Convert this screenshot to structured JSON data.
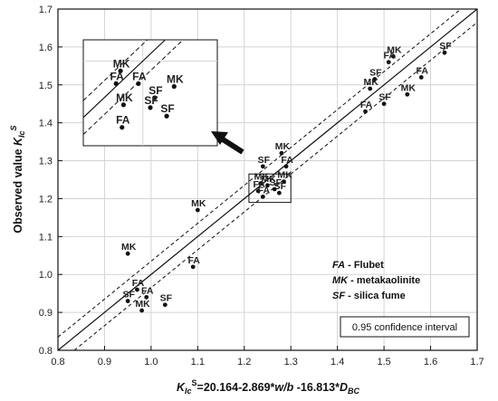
{
  "chart_data": {
    "type": "scatter",
    "xlabel": "K_Ic^S=20.164-2.869*w/b -16.813*D_BC",
    "ylabel": "Observed value K_Ic^S",
    "xlabel_parts": {
      "k": "K",
      "sub1": "Ic",
      "sup": "S",
      "rest_a": "=20.164-2.869*",
      "wb": "w/b",
      "rest_b": " -16.813*",
      "d": "D",
      "sub2": "BC"
    },
    "ylabel_parts": {
      "text": "Observed value ",
      "k": "K",
      "sub": "Ic",
      "sup": "S"
    },
    "xlim": [
      0.8,
      1.7
    ],
    "ylim": [
      0.8,
      1.7
    ],
    "xticks": [
      "0.8",
      "0.9",
      "1.0",
      "1.1",
      "1.2",
      "1.3",
      "1.4",
      "1.5",
      "1.6",
      "1.7"
    ],
    "yticks": [
      "0.8",
      "0.9",
      "1.0",
      "1.1",
      "1.2",
      "1.3",
      "1.4",
      "1.5",
      "1.6",
      "1.7"
    ],
    "grid": true,
    "fit_line": {
      "slope": 1,
      "intercept": 0
    },
    "confidence_band": {
      "label": "0.95 confidence interval",
      "offset": 0.035
    },
    "legend": [
      {
        "abbr": "FA",
        "desc": " - Flubet"
      },
      {
        "abbr": "MK",
        "desc": " - metakaolinite"
      },
      {
        "abbr": "SF",
        "desc": " - silica fume"
      }
    ],
    "points": [
      {
        "label": "FA",
        "x": 0.97,
        "y": 0.96
      },
      {
        "label": "SF",
        "x": 0.95,
        "y": 0.93
      },
      {
        "label": "FA",
        "x": 0.99,
        "y": 0.94
      },
      {
        "label": "MK",
        "x": 0.98,
        "y": 0.905
      },
      {
        "label": "SF",
        "x": 1.03,
        "y": 0.92
      },
      {
        "label": "MK",
        "x": 0.95,
        "y": 1.055
      },
      {
        "label": "FA",
        "x": 1.09,
        "y": 1.02
      },
      {
        "label": "MK",
        "x": 1.1,
        "y": 1.17
      },
      {
        "label": "SF",
        "x": 1.24,
        "y": 1.285
      },
      {
        "label": "MK",
        "x": 1.28,
        "y": 1.32
      },
      {
        "label": "FA",
        "x": 1.29,
        "y": 1.285
      },
      {
        "label": "MK",
        "x": 1.235,
        "y": 1.24
      },
      {
        "label": "FA",
        "x": 1.23,
        "y": 1.22
      },
      {
        "label": "FA",
        "x": 1.24,
        "y": 1.205
      },
      {
        "label": "MK",
        "x": 1.25,
        "y": 1.235
      },
      {
        "label": "SF",
        "x": 1.265,
        "y": 1.225
      },
      {
        "label": "MK",
        "x": 1.285,
        "y": 1.245
      },
      {
        "label": "SF",
        "x": 1.275,
        "y": 1.215
      },
      {
        "label": "FA",
        "x": 1.46,
        "y": 1.43
      },
      {
        "label": "MK",
        "x": 1.47,
        "y": 1.49
      },
      {
        "label": "SF",
        "x": 1.48,
        "y": 1.515
      },
      {
        "label": "SF",
        "x": 1.5,
        "y": 1.45
      },
      {
        "label": "FA",
        "x": 1.51,
        "y": 1.56
      },
      {
        "label": "MK",
        "x": 1.52,
        "y": 1.575
      },
      {
        "label": "MK",
        "x": 1.55,
        "y": 1.475
      },
      {
        "label": "FA",
        "x": 1.58,
        "y": 1.52
      },
      {
        "label": "SF",
        "x": 1.63,
        "y": 1.585
      }
    ],
    "inset": {
      "xlim": [
        1.21,
        1.3
      ],
      "ylim": [
        1.19,
        1.265
      ],
      "points": [
        {
          "label": "MK",
          "x": 1.235,
          "y": 1.243
        },
        {
          "label": "FA",
          "x": 1.232,
          "y": 1.234
        },
        {
          "label": "FA",
          "x": 1.247,
          "y": 1.234
        },
        {
          "label": "MK",
          "x": 1.271,
          "y": 1.232
        },
        {
          "label": "SF",
          "x": 1.258,
          "y": 1.224
        },
        {
          "label": "MK",
          "x": 1.237,
          "y": 1.219
        },
        {
          "label": "SF",
          "x": 1.255,
          "y": 1.217
        },
        {
          "label": "SF",
          "x": 1.266,
          "y": 1.211
        },
        {
          "label": "FA",
          "x": 1.236,
          "y": 1.203
        }
      ]
    }
  }
}
